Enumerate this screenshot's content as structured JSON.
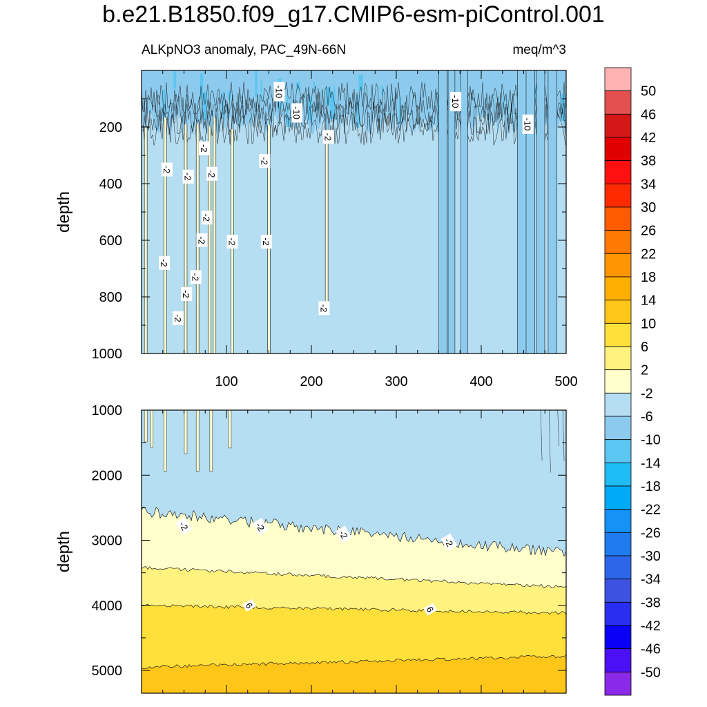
{
  "title": "b.e21.B1850.f09_g17.CMIP6-esm-piControl.001",
  "subtitle_left": "ALKpNO3 anomaly, PAC_49N-66N",
  "subtitle_right": "meq/m^3",
  "chart_data": [
    {
      "type": "heatmap",
      "panel": "upper",
      "title": "ALKpNO3 anomaly, PAC_49N-66N",
      "units": "meq/m^3",
      "ylabel": "depth",
      "xlabel": "",
      "xlim": [
        0,
        500
      ],
      "ylim": [
        1000,
        0
      ],
      "xticks": [
        100,
        200,
        300,
        400,
        500
      ],
      "yticks": [
        200,
        400,
        600,
        800,
        1000
      ],
      "background_level": "-6 to -2",
      "features": {
        "surface_noise_depth_range": [
          0,
          200
        ],
        "yellow_streaks_x": [
          5,
          28,
          52,
          66,
          80,
          86,
          107,
          150,
          218
        ],
        "blue_streaks_x": [
          355,
          365,
          380,
          448,
          458,
          470,
          484
        ]
      },
      "contour_labels": [
        {
          "value": "-10",
          "x": 162,
          "y": 75
        },
        {
          "value": "-10",
          "x": 183,
          "y": 150
        },
        {
          "value": "-10",
          "x": 370,
          "y": 110
        },
        {
          "value": "-10",
          "x": 455,
          "y": 190
        },
        {
          "value": "-2",
          "x": 220,
          "y": 235
        },
        {
          "value": "-2",
          "x": 74,
          "y": 275
        },
        {
          "value": "-2",
          "x": 145,
          "y": 320
        },
        {
          "value": "-2",
          "x": 30,
          "y": 350
        },
        {
          "value": "-2",
          "x": 55,
          "y": 375
        },
        {
          "value": "-2",
          "x": 83,
          "y": 365
        },
        {
          "value": "-2",
          "x": 77,
          "y": 520
        },
        {
          "value": "-2",
          "x": 71,
          "y": 600
        },
        {
          "value": "-2",
          "x": 107,
          "y": 605
        },
        {
          "value": "-2",
          "x": 147,
          "y": 605
        },
        {
          "value": "-2",
          "x": 27,
          "y": 680
        },
        {
          "value": "-2",
          "x": 64,
          "y": 730
        },
        {
          "value": "-2",
          "x": 53,
          "y": 790
        },
        {
          "value": "-2",
          "x": 43,
          "y": 875
        },
        {
          "value": "-2",
          "x": 215,
          "y": 840
        }
      ]
    },
    {
      "type": "heatmap",
      "panel": "lower",
      "ylabel": "depth",
      "xlabel": "",
      "xlim": [
        0,
        500
      ],
      "ylim": [
        5350,
        1000
      ],
      "yticks": [
        1000,
        2000,
        3000,
        4000,
        5000
      ],
      "boundaries": [
        {
          "level": -2,
          "y_at_x0": 2550,
          "y_at_x500": 3200
        },
        {
          "level": 2,
          "y_at_x0": 3420,
          "y_at_x500": 3720
        },
        {
          "level": 6,
          "y_at_x0": 4000,
          "y_at_x500": 4120
        },
        {
          "level": 10,
          "y_at_x0": 4950,
          "y_at_x500": 4780
        }
      ],
      "contour_labels": [
        {
          "value": "-2",
          "x": 50,
          "y": 2780
        },
        {
          "value": "-2",
          "x": 140,
          "y": 2790
        },
        {
          "value": "-2",
          "x": 238,
          "y": 2910
        },
        {
          "value": "-2",
          "x": 362,
          "y": 3030
        },
        {
          "value": "6",
          "x": 127,
          "y": 4000
        },
        {
          "value": "6",
          "x": 340,
          "y": 4060
        }
      ]
    }
  ],
  "colorbar": {
    "labels": [
      "50",
      "46",
      "42",
      "38",
      "34",
      "30",
      "26",
      "22",
      "18",
      "14",
      "10",
      "6",
      "2",
      "-2",
      "-6",
      "-10",
      "-14",
      "-18",
      "-22",
      "-26",
      "-30",
      "-34",
      "-38",
      "-42",
      "-46",
      "-50"
    ],
    "colors": [
      "#ffb3b3",
      "#e35050",
      "#d41818",
      "#e00000",
      "#ff1010",
      "#ff2a00",
      "#ff5a00",
      "#ff7a00",
      "#ff9500",
      "#ffaf00",
      "#ffc61a",
      "#ffdf3a",
      "#fff27f",
      "#ffffcc",
      "#b5def3",
      "#8ccbee",
      "#5cc6f2",
      "#1ebdf6",
      "#00aaf7",
      "#1592f6",
      "#1f7cf0",
      "#2e66ea",
      "#3d52e0",
      "#2a2ef0",
      "#0a00f5",
      "#4b10f5",
      "#8a2ae8"
    ]
  }
}
